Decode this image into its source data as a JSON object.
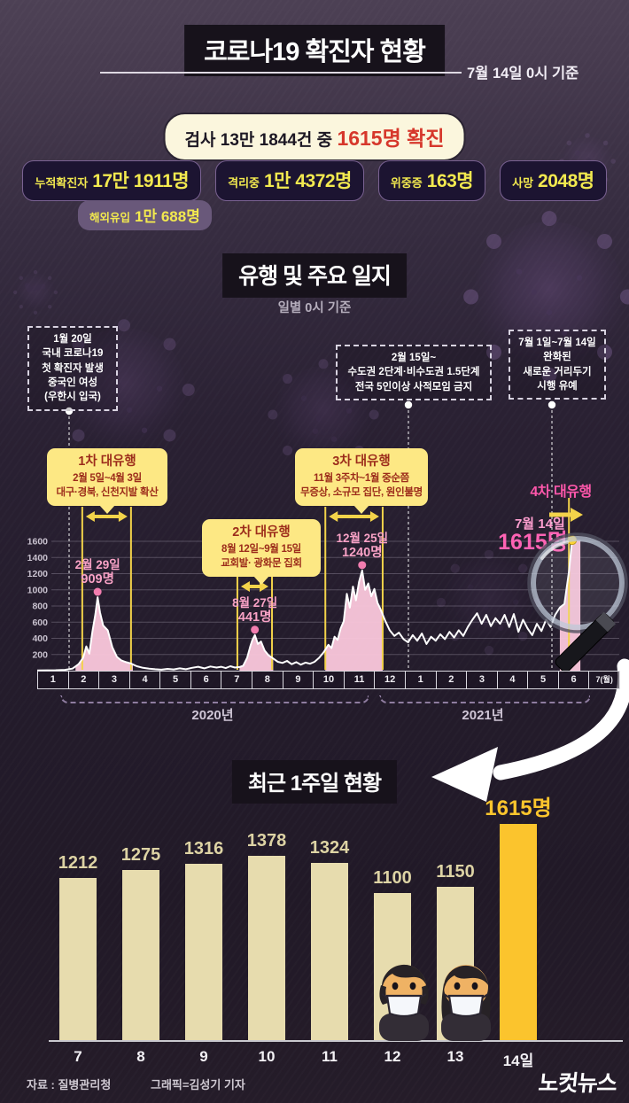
{
  "header": {
    "title": "코로나19 확진자 현황",
    "as_of": "7월 14일 0시 기준"
  },
  "summary": {
    "prefix": "검사 13만 1844건 중 ",
    "highlight": "1615명 확진"
  },
  "stat_boxes": [
    {
      "label": "누적확진자",
      "value": "17만 1911명"
    },
    {
      "label": "격리중",
      "value": "1만 4372명"
    },
    {
      "label": "위중증",
      "value": "163명"
    },
    {
      "label": "사망",
      "value": "2048명"
    }
  ],
  "imported": {
    "label": "해외유입",
    "value": "1만 688명"
  },
  "timeline_section": {
    "title": "유행 및 주요 일지",
    "subtitle": "일별 0시 기준",
    "callouts": [
      {
        "lines": [
          "1월 20일",
          "국내 코로나19",
          "첫 확진자 발생",
          "중국인 여성",
          "(우한시 입국)"
        ]
      },
      {
        "lines": [
          "2월 15일~",
          "수도권 2단계·비수도권 1.5단계",
          "전국 5인이상 사적모임 금지"
        ]
      },
      {
        "lines": [
          "7월 1일~7월 14일",
          "완화된",
          "새로운 거리두기",
          "시행 유예"
        ]
      }
    ],
    "waves": [
      {
        "title": "1차 대유행",
        "period": "2월 5일~4월 3일",
        "desc": "대구·경북, 신천지발 확산"
      },
      {
        "title": "2차 대유행",
        "period": "8월 12일~9월 15일",
        "desc": "교회발· 광화문 집회"
      },
      {
        "title": "3차 대유행",
        "period": "11월 3주차~1월 중순쯤",
        "desc": "무증상, 소규모 집단, 원인불명"
      },
      {
        "title": "4차 대유행",
        "period": "",
        "desc": ""
      }
    ],
    "years": [
      "2020년",
      "2021년"
    ]
  },
  "recent_section": {
    "title": "최근 1주일 현황",
    "highlight_label": "1615명"
  },
  "footer": {
    "source": "자료 : 질병관리청",
    "credit": "그래픽=김성기 기자",
    "logo": "노컷뉴스"
  },
  "colors": {
    "accent_yellow": "#f2e94f",
    "wave_box": "#fde884",
    "wave_text": "#9c2c1b",
    "pink_fill": "#f9c6db",
    "pink_label": "#f9a2c6",
    "hot_pink": "#ff57ab",
    "gold": "#fbc42d",
    "cream_bar": "#e7dcae",
    "red_highlight": "#d6372b"
  },
  "chart_data": [
    {
      "type": "line",
      "title": "유행 및 주요 일지 — 일별 신규 확진자",
      "subtitle": "일별 0시 기준",
      "x_categories": [
        "1",
        "2",
        "3",
        "4",
        "5",
        "6",
        "7",
        "8",
        "9",
        "10",
        "11",
        "12",
        "1",
        "2",
        "3",
        "4",
        "5",
        "6",
        "7(월)"
      ],
      "x_year_groups": [
        {
          "label": "2020년",
          "from": 0,
          "to": 11
        },
        {
          "label": "2021년",
          "from": 12,
          "to": 18
        }
      ],
      "ylim": [
        0,
        1700
      ],
      "yticks": [
        200,
        400,
        600,
        800,
        1000,
        1200,
        1400,
        1600
      ],
      "grid": true,
      "series": [
        {
          "name": "일별 확진자",
          "points": [
            [
              0,
              2
            ],
            [
              0.3,
              4
            ],
            [
              0.6,
              6
            ],
            [
              0.9,
              10
            ],
            [
              1.15,
              25
            ],
            [
              1.35,
              80
            ],
            [
              1.5,
              160
            ],
            [
              1.6,
              300
            ],
            [
              1.7,
              210
            ],
            [
              1.8,
              480
            ],
            [
              1.9,
              700
            ],
            [
              1.97,
              909
            ],
            [
              2.05,
              720
            ],
            [
              2.15,
              560
            ],
            [
              2.3,
              500
            ],
            [
              2.45,
              290
            ],
            [
              2.6,
              170
            ],
            [
              2.75,
              125
            ],
            [
              2.9,
              105
            ],
            [
              3.05,
              90
            ],
            [
              3.25,
              55
            ],
            [
              3.45,
              35
            ],
            [
              3.65,
              25
            ],
            [
              3.85,
              18
            ],
            [
              4.05,
              12
            ],
            [
              4.25,
              22
            ],
            [
              4.45,
              15
            ],
            [
              4.65,
              28
            ],
            [
              4.85,
              18
            ],
            [
              5.05,
              35
            ],
            [
              5.25,
              48
            ],
            [
              5.45,
              28
            ],
            [
              5.65,
              52
            ],
            [
              5.85,
              38
            ],
            [
              6.0,
              48
            ],
            [
              6.15,
              32
            ],
            [
              6.3,
              55
            ],
            [
              6.45,
              38
            ],
            [
              6.6,
              45
            ],
            [
              6.72,
              60
            ],
            [
              6.85,
              160
            ],
            [
              6.95,
              300
            ],
            [
              7.02,
              380
            ],
            [
              7.1,
              441
            ],
            [
              7.2,
              330
            ],
            [
              7.3,
              360
            ],
            [
              7.42,
              250
            ],
            [
              7.55,
              190
            ],
            [
              7.7,
              150
            ],
            [
              7.85,
              110
            ],
            [
              8.0,
              95
            ],
            [
              8.15,
              120
            ],
            [
              8.3,
              80
            ],
            [
              8.45,
              105
            ],
            [
              8.6,
              75
            ],
            [
              8.75,
              100
            ],
            [
              8.9,
              85
            ],
            [
              9.05,
              110
            ],
            [
              9.2,
              160
            ],
            [
              9.35,
              230
            ],
            [
              9.5,
              320
            ],
            [
              9.6,
              280
            ],
            [
              9.7,
              420
            ],
            [
              9.8,
              380
            ],
            [
              9.9,
              520
            ],
            [
              10.0,
              610
            ],
            [
              10.1,
              950
            ],
            [
              10.2,
              780
            ],
            [
              10.3,
              1040
            ],
            [
              10.4,
              870
            ],
            [
              10.5,
              1100
            ],
            [
              10.6,
              1240
            ],
            [
              10.7,
              1000
            ],
            [
              10.8,
              1080
            ],
            [
              10.9,
              920
            ],
            [
              11.0,
              1010
            ],
            [
              11.1,
              840
            ],
            [
              11.2,
              760
            ],
            [
              11.35,
              620
            ],
            [
              11.5,
              500
            ],
            [
              11.65,
              430
            ],
            [
              11.8,
              470
            ],
            [
              11.95,
              390
            ],
            [
              12.1,
              350
            ],
            [
              12.25,
              440
            ],
            [
              12.4,
              370
            ],
            [
              12.55,
              460
            ],
            [
              12.7,
              330
            ],
            [
              12.85,
              420
            ],
            [
              13.0,
              370
            ],
            [
              13.15,
              450
            ],
            [
              13.3,
              390
            ],
            [
              13.45,
              480
            ],
            [
              13.6,
              410
            ],
            [
              13.75,
              500
            ],
            [
              13.9,
              430
            ],
            [
              14.05,
              540
            ],
            [
              14.2,
              630
            ],
            [
              14.35,
              710
            ],
            [
              14.5,
              580
            ],
            [
              14.65,
              690
            ],
            [
              14.8,
              550
            ],
            [
              14.95,
              650
            ],
            [
              15.1,
              580
            ],
            [
              15.25,
              690
            ],
            [
              15.4,
              540
            ],
            [
              15.55,
              700
            ],
            [
              15.7,
              480
            ],
            [
              15.85,
              630
            ],
            [
              16.0,
              520
            ],
            [
              16.15,
              440
            ],
            [
              16.3,
              580
            ],
            [
              16.45,
              490
            ],
            [
              16.6,
              630
            ],
            [
              16.75,
              540
            ],
            [
              16.9,
              690
            ],
            [
              17.05,
              780
            ],
            [
              17.2,
              826
            ],
            [
              17.35,
              1230
            ],
            [
              17.45,
              1615
            ]
          ]
        }
      ],
      "annotations": [
        {
          "x": 1.97,
          "y": 909,
          "date": "2월 29일",
          "label": "909명"
        },
        {
          "x": 7.1,
          "y": 441,
          "date": "8월 27일",
          "label": "441명"
        },
        {
          "x": 10.6,
          "y": 1240,
          "date": "12월 25일",
          "label": "1240명"
        },
        {
          "x": 17.45,
          "y": 1615,
          "date": "7월 14일",
          "label": "1615명",
          "highlight": true
        }
      ],
      "wave_spans": [
        {
          "from": 1.47,
          "to": 3.06
        },
        {
          "from": 6.53,
          "to": 7.66
        },
        {
          "from": 9.4,
          "to": 11.27
        }
      ],
      "final_marker_x": 17.0,
      "fill_spans": [
        [
          1.25,
          3.12
        ],
        [
          6.6,
          7.7
        ],
        [
          9.4,
          11.27
        ],
        [
          17.05,
          17.72
        ]
      ],
      "legend": false
    },
    {
      "type": "bar",
      "title": "최근 1주일 현황",
      "categories": [
        "7",
        "8",
        "9",
        "10",
        "11",
        "12",
        "13",
        "14일"
      ],
      "values": [
        1212,
        1275,
        1316,
        1378,
        1324,
        1100,
        1150,
        1615
      ],
      "highlight_index": 7,
      "ylim": [
        0,
        1700
      ]
    }
  ]
}
